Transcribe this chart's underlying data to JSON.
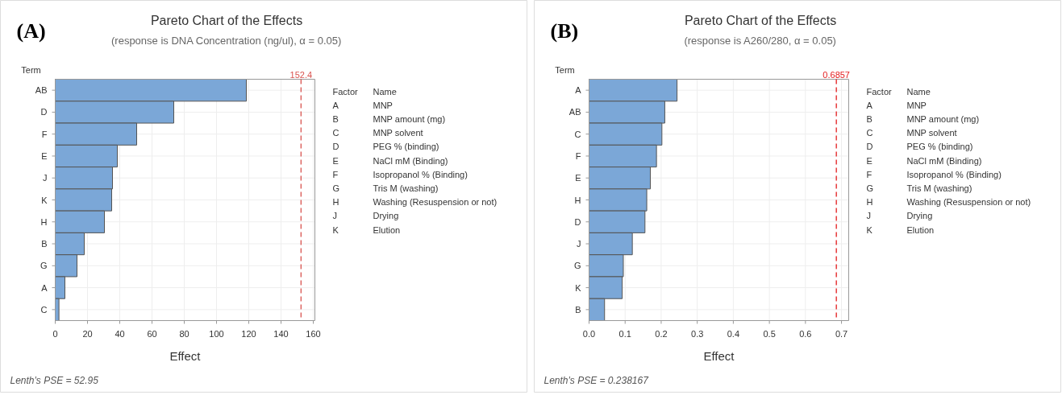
{
  "chart_data": [
    {
      "type": "bar",
      "orientation": "horizontal",
      "title": "Pareto Chart of the Effects",
      "subtitle": "(response is DNA Concentration (ng/ul), α = 0.05)",
      "xlabel": "Effect",
      "ylabel": "Term",
      "categories": [
        "AB",
        "D",
        "F",
        "E",
        "J",
        "K",
        "H",
        "B",
        "G",
        "A",
        "C"
      ],
      "values": [
        118.5,
        73.5,
        50.5,
        38.5,
        35.5,
        35,
        30.5,
        18,
        13.5,
        6,
        2.3
      ],
      "color": "#7ba7d7",
      "xlim": [
        0,
        161
      ],
      "xticks": [
        0,
        20,
        40,
        60,
        80,
        100,
        120,
        140,
        160
      ],
      "grid": true,
      "ref_lines": [
        {
          "axis": "x",
          "value": 152.4,
          "label": "152.4",
          "color": "#d9534f",
          "line_style": "dashed"
        }
      ],
      "annotations": [
        "(A)",
        "Lenth's PSE = 52.95",
        "Factor",
        "Name",
        "A",
        "MNP",
        "B",
        "MNP amount (mg)",
        "C",
        "MNP solvent",
        "D",
        "PEG % (binding)",
        "E",
        "NaCl mM (Binding)",
        "F",
        "Isopropanol % (Binding)",
        "G",
        "Tris M (washing)",
        "H",
        "Washing (Resuspension or not)",
        "J",
        "Drying",
        "K",
        "Elution"
      ]
    },
    {
      "type": "bar",
      "orientation": "horizontal",
      "title": "Pareto Chart of the Effects",
      "subtitle": "(response is A260/280, α = 0.05)",
      "xlabel": "Effect",
      "ylabel": "Term",
      "categories": [
        "A",
        "AB",
        "C",
        "F",
        "E",
        "H",
        "D",
        "J",
        "G",
        "K",
        "B"
      ],
      "values": [
        0.244,
        0.21,
        0.202,
        0.187,
        0.17,
        0.16,
        0.155,
        0.12,
        0.095,
        0.092,
        0.043
      ],
      "color": "#7ba7d7",
      "xlim": [
        0,
        0.72
      ],
      "xticks": [
        {
          "value": 0,
          "label": "0.0"
        },
        0.1,
        0.2,
        0.3,
        0.4,
        0.5,
        0.6,
        0.7
      ],
      "grid": true,
      "ref_lines": [
        {
          "axis": "x",
          "value": 0.6857,
          "label": "0.6857",
          "color": "#e31a1c",
          "line_style": "dashed"
        }
      ],
      "annotations": [
        "(B)",
        "Lenth's PSE = 0.238167",
        "Factor",
        "Name",
        "A",
        "MNP",
        "B",
        "MNP amount (mg)",
        "C",
        "MNP solvent",
        "D",
        "PEG % (binding)",
        "E",
        "NaCl mM (Binding)",
        "F",
        "Isopropanol % (Binding)",
        "G",
        "Tris M (washing)",
        "H",
        "Washing (Resuspension or not)",
        "J",
        "Drying",
        "K",
        "Elution"
      ]
    }
  ]
}
